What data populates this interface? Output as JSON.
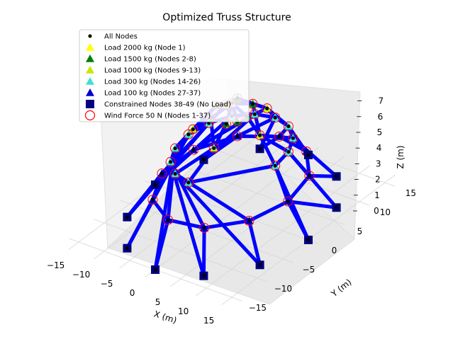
{
  "chart_data": {
    "type": "3d-truss",
    "title": "Optimized Truss Structure",
    "xlabel": "X (m)",
    "ylabel": "Y (m)",
    "zlabel": "Z (m)",
    "xlim": [
      -17,
      17
    ],
    "ylim": [
      -17,
      17
    ],
    "zlim": [
      0,
      7.5
    ],
    "x_ticks": [
      "−15",
      "−10",
      "−5",
      "0",
      "5",
      "10",
      "15"
    ],
    "y_ticks": [
      "−15",
      "−10",
      "−5",
      "0",
      "5",
      "10",
      "15"
    ],
    "z_ticks": [
      "0",
      "1",
      "2",
      "3",
      "4",
      "5",
      "6",
      "7"
    ],
    "grid": true,
    "legend_position": "top-left",
    "legend": [
      {
        "label": "All Nodes",
        "marker": "dot",
        "color": "#000000"
      },
      {
        "label": "Load 2000 kg (Node 1)",
        "marker": "triangle",
        "color": "#ffff00"
      },
      {
        "label": "Load 1500 kg (Nodes 2-8)",
        "marker": "triangle",
        "color": "#008000"
      },
      {
        "label": "Load 1000 kg (Nodes 9-13)",
        "marker": "triangle",
        "color": "#c8e600"
      },
      {
        "label": "Load 300 kg (Nodes 14-26)",
        "marker": "triangle",
        "color": "#40e0d0"
      },
      {
        "label": "Load 100 kg (Nodes 27-37)",
        "marker": "triangle",
        "color": "#0000cd"
      },
      {
        "label": "Constrained Nodes 38-49 (No Load)",
        "marker": "square",
        "color": "#000080"
      },
      {
        "label": "Wind Force 50 N (Nodes 1-37)",
        "marker": "circle-open",
        "color": "#ff0000"
      }
    ],
    "member_color": "#0000ff",
    "nodes": [
      {
        "id": 1,
        "x": 0,
        "y": 0,
        "z": 7.0,
        "group": "load2000"
      },
      {
        "id": 2,
        "x": 3.0,
        "y": 0,
        "z": 6.5,
        "group": "load1500"
      },
      {
        "id": 3,
        "x": 1.5,
        "y": 2.6,
        "z": 6.5,
        "group": "load1500"
      },
      {
        "id": 4,
        "x": -1.5,
        "y": 2.6,
        "z": 6.5,
        "group": "load1500"
      },
      {
        "id": 5,
        "x": -3.0,
        "y": 0,
        "z": 6.5,
        "group": "load1500"
      },
      {
        "id": 6,
        "x": -1.5,
        "y": -2.6,
        "z": 6.5,
        "group": "load1500"
      },
      {
        "id": 7,
        "x": 1.5,
        "y": -2.6,
        "z": 6.5,
        "group": "load1500"
      },
      {
        "id": 8,
        "x": 2.6,
        "y": -1.5,
        "z": 6.5,
        "group": "load1500"
      },
      {
        "id": 9,
        "x": 5.5,
        "y": 0,
        "z": 5.6,
        "group": "load1000"
      },
      {
        "id": 10,
        "x": 1.7,
        "y": 5.2,
        "z": 5.6,
        "group": "load1000"
      },
      {
        "id": 11,
        "x": -4.4,
        "y": 3.2,
        "z": 5.6,
        "group": "load1000"
      },
      {
        "id": 12,
        "x": -4.4,
        "y": -3.2,
        "z": 5.6,
        "group": "load1000"
      },
      {
        "id": 13,
        "x": 1.7,
        "y": -5.2,
        "z": 5.6,
        "group": "load1000"
      },
      {
        "id": 14,
        "x": 8.5,
        "y": 0,
        "z": 4.0,
        "group": "load300"
      },
      {
        "id": 15,
        "x": 7.8,
        "y": 3.3,
        "z": 4.0,
        "group": "load300"
      },
      {
        "id": 16,
        "x": 6.0,
        "y": 6.0,
        "z": 4.0,
        "group": "load300"
      },
      {
        "id": 17,
        "x": 3.3,
        "y": 7.8,
        "z": 4.0,
        "group": "load300"
      },
      {
        "id": 18,
        "x": 0,
        "y": 8.5,
        "z": 4.0,
        "group": "load300"
      },
      {
        "id": 19,
        "x": -3.3,
        "y": 7.8,
        "z": 4.0,
        "group": "load300"
      },
      {
        "id": 20,
        "x": -6.0,
        "y": 6.0,
        "z": 4.0,
        "group": "load300"
      },
      {
        "id": 21,
        "x": -7.8,
        "y": 3.3,
        "z": 4.0,
        "group": "load300"
      },
      {
        "id": 22,
        "x": -8.5,
        "y": 0,
        "z": 4.0,
        "group": "load300"
      },
      {
        "id": 23,
        "x": -7.8,
        "y": -3.3,
        "z": 4.0,
        "group": "load300"
      },
      {
        "id": 24,
        "x": -6.0,
        "y": -6.0,
        "z": 4.0,
        "group": "load300"
      },
      {
        "id": 25,
        "x": -3.3,
        "y": -7.8,
        "z": 4.0,
        "group": "load300"
      },
      {
        "id": 26,
        "x": 0,
        "y": -8.5,
        "z": 4.0,
        "group": "load300"
      },
      {
        "id": 27,
        "x": 11.0,
        "y": 0,
        "z": 2.0,
        "group": "load100"
      },
      {
        "id": 28,
        "x": 9.3,
        "y": 5.9,
        "z": 2.0,
        "group": "load100"
      },
      {
        "id": 29,
        "x": 4.6,
        "y": 10.0,
        "z": 2.0,
        "group": "load100"
      },
      {
        "id": 30,
        "x": -1.6,
        "y": 10.9,
        "z": 2.0,
        "group": "load100"
      },
      {
        "id": 31,
        "x": -7.2,
        "y": 8.3,
        "z": 2.0,
        "group": "load100"
      },
      {
        "id": 32,
        "x": -10.6,
        "y": 3.1,
        "z": 2.0,
        "group": "load100"
      },
      {
        "id": 33,
        "x": -10.6,
        "y": -3.1,
        "z": 2.0,
        "group": "load100"
      },
      {
        "id": 34,
        "x": -7.2,
        "y": -8.3,
        "z": 2.0,
        "group": "load100"
      },
      {
        "id": 35,
        "x": -1.6,
        "y": -10.9,
        "z": 2.0,
        "group": "load100"
      },
      {
        "id": 36,
        "x": 4.6,
        "y": -10.0,
        "z": 2.0,
        "group": "load100"
      },
      {
        "id": 37,
        "x": 9.3,
        "y": -5.9,
        "z": 2.0,
        "group": "load100"
      },
      {
        "id": 38,
        "x": 15.0,
        "y": 0,
        "z": 0,
        "group": "constrained"
      },
      {
        "id": 39,
        "x": 13.0,
        "y": 7.5,
        "z": 0,
        "group": "constrained"
      },
      {
        "id": 40,
        "x": 7.5,
        "y": 13.0,
        "z": 0,
        "group": "constrained"
      },
      {
        "id": 41,
        "x": 0,
        "y": 15.0,
        "z": 0,
        "group": "constrained"
      },
      {
        "id": 42,
        "x": -7.5,
        "y": 13.0,
        "z": 0,
        "group": "constrained"
      },
      {
        "id": 43,
        "x": -13.0,
        "y": 7.5,
        "z": 0,
        "group": "constrained"
      },
      {
        "id": 44,
        "x": -15.0,
        "y": 0,
        "z": 0,
        "group": "constrained"
      },
      {
        "id": 45,
        "x": -13.0,
        "y": -7.5,
        "z": 0,
        "group": "constrained"
      },
      {
        "id": 46,
        "x": -7.5,
        "y": -13.0,
        "z": 0,
        "group": "constrained"
      },
      {
        "id": 47,
        "x": 0,
        "y": -15.0,
        "z": 0,
        "group": "constrained"
      },
      {
        "id": 48,
        "x": 7.5,
        "y": -13.0,
        "z": 0,
        "group": "constrained"
      },
      {
        "id": 49,
        "x": 13.0,
        "y": -7.5,
        "z": 0,
        "group": "constrained"
      }
    ]
  }
}
